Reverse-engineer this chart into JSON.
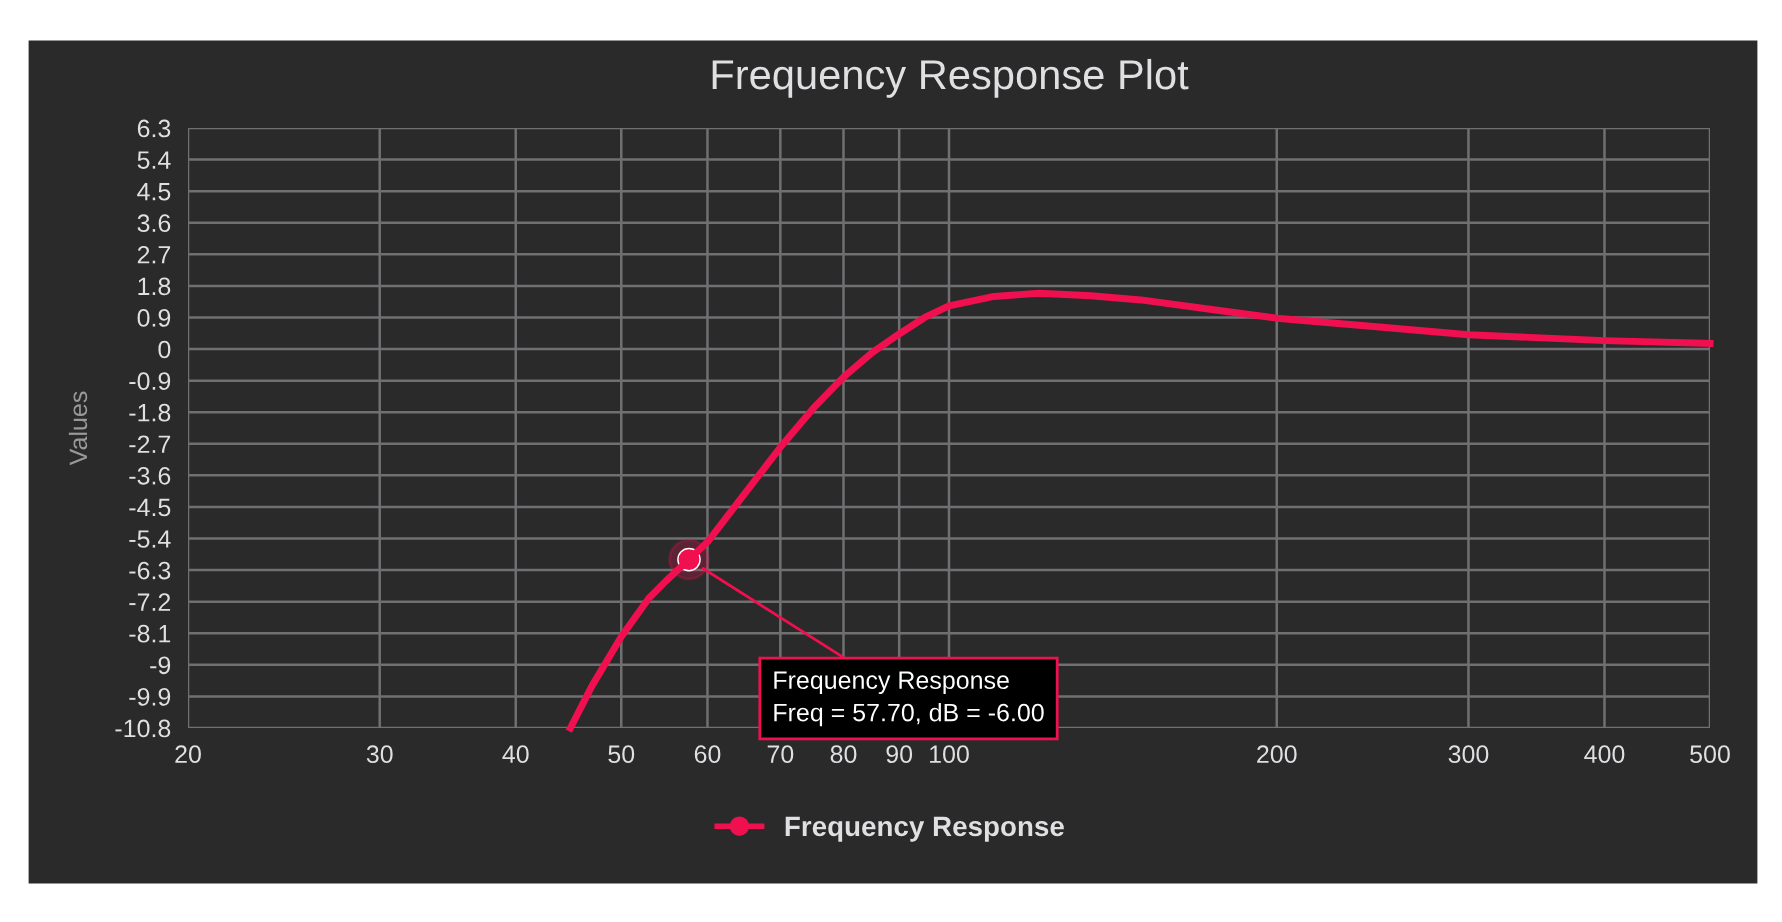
{
  "chart_data": {
    "type": "line",
    "title": "Frequency Response Plot",
    "ylabel": "Values",
    "series": [
      {
        "name": "Frequency Response",
        "color": "#f0104f",
        "x": [
          44.9,
          47,
          50,
          53,
          55,
          57.7,
          60,
          65,
          70,
          75,
          80,
          85,
          90,
          95,
          100,
          110,
          121,
          135,
          150,
          175,
          200,
          250,
          300,
          400,
          500
        ],
        "values": [
          -10.8,
          -9.6,
          -8.2,
          -7.1,
          -6.6,
          -6.0,
          -5.5,
          -4.1,
          -2.8,
          -1.7,
          -0.8,
          -0.1,
          0.43,
          0.9,
          1.23,
          1.5,
          1.59,
          1.52,
          1.4,
          1.12,
          0.88,
          0.62,
          0.41,
          0.24,
          0.16
        ]
      }
    ],
    "annotations": [
      {
        "text": "Frequency Response\nFreq = 57.70, dB = -6.00",
        "x": 57.7,
        "y": -6.0
      }
    ],
    "log": "x",
    "xlim": [
      20,
      500
    ],
    "xticks": [
      20,
      30,
      40,
      50,
      60,
      70,
      80,
      90,
      100,
      200,
      300,
      400,
      500
    ],
    "ylim": [
      -10.8,
      6.3
    ],
    "yticks": [
      6.3,
      5.4,
      4.5,
      3.6,
      2.7,
      1.8,
      0.9,
      0,
      -0.9,
      -1.8,
      -2.7,
      -3.6,
      -4.5,
      -5.4,
      -6.3,
      -7.2,
      -8.1,
      -9,
      -9.9,
      -10.8
    ],
    "grid": true,
    "legend": "bottom",
    "line_style": "solid"
  }
}
